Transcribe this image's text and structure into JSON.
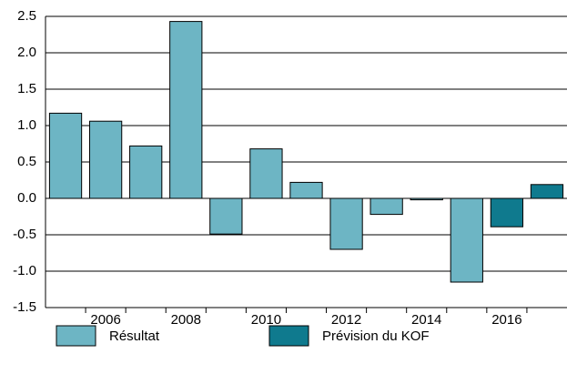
{
  "chart_data": {
    "type": "bar",
    "categories": [
      null,
      "2006",
      null,
      "2008",
      null,
      "2010",
      null,
      "2012",
      null,
      "2014",
      null,
      "2016",
      null
    ],
    "series": [
      {
        "name": "Résultat",
        "color": "#6db5c4",
        "values": [
          1.17,
          1.06,
          0.72,
          2.43,
          -0.49,
          0.68,
          0.22,
          -0.7,
          -0.22,
          -0.02,
          -1.15,
          null,
          null
        ]
      },
      {
        "name": "Prévision du KOF",
        "color": "#0f7a8e",
        "values": [
          null,
          null,
          null,
          null,
          null,
          null,
          null,
          null,
          null,
          null,
          null,
          -0.39,
          0.19
        ]
      }
    ],
    "ylim": [
      -1.5,
      2.5
    ],
    "yticks": [
      -1.5,
      {
        "value": -1.0,
        "label": "-1.0"
      },
      -0.5,
      {
        "value": 0.0,
        "label": "0.0"
      },
      0.5,
      {
        "value": 1.0,
        "label": "1.0"
      },
      1.5,
      {
        "value": 2.0,
        "label": "2.0"
      },
      2.5
    ],
    "grid": true,
    "legend": "bottom"
  }
}
